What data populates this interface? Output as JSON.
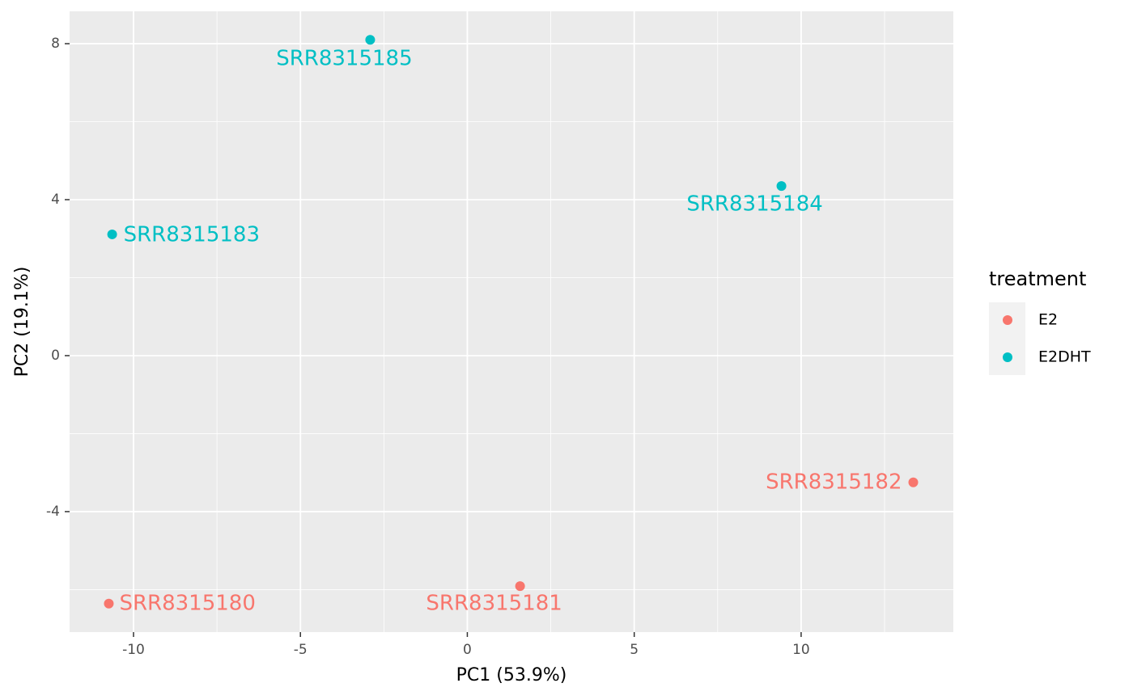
{
  "chart_data": {
    "type": "scatter",
    "xlabel": "PC1 (53.9%)",
    "ylabel": "PC2 (19.1%)",
    "xlim": [
      -11.915,
      14.56
    ],
    "ylim": [
      -7.09,
      8.83
    ],
    "xticks": [
      -10,
      -5,
      0,
      5,
      10
    ],
    "yticks": [
      -4,
      0,
      4,
      8
    ],
    "grid": true,
    "legend_title": "treatment",
    "legend": "right",
    "series": [
      {
        "name": "E2",
        "color": "#F8766D",
        "x": [
          -10.74,
          1.58,
          13.36
        ],
        "values": [
          -6.36,
          -5.91,
          -3.25
        ],
        "point_labels": [
          "SRR8315180",
          "SRR8315181",
          "SRR8315182"
        ]
      },
      {
        "name": "E2DHT",
        "color": "#00BFC4",
        "x": [
          -10.64,
          9.41,
          -2.91
        ],
        "values": [
          3.11,
          4.35,
          8.1
        ],
        "point_labels": [
          "SRR8315183",
          "SRR8315184",
          "SRR8315185"
        ]
      }
    ]
  }
}
